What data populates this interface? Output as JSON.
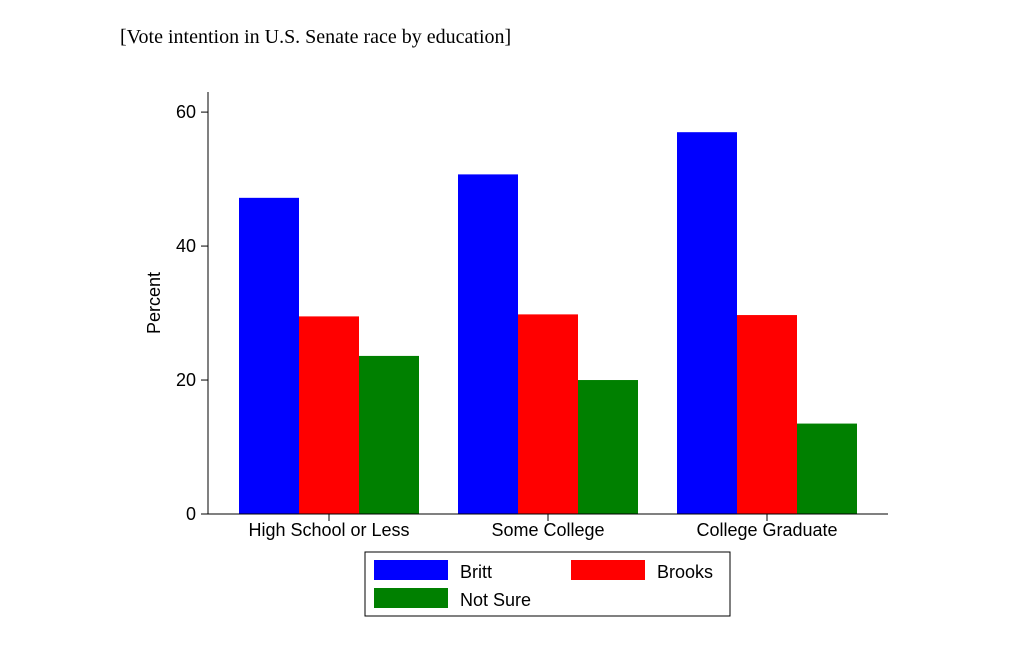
{
  "chart_data": {
    "type": "bar",
    "title": "[Vote intention in U.S. Senate race by education]",
    "xlabel": "",
    "ylabel": "Percent",
    "ylim": [
      0,
      63
    ],
    "yticks": [
      0,
      20,
      40,
      60
    ],
    "categories": [
      "High School or Less",
      "Some College",
      "College Graduate"
    ],
    "series": [
      {
        "name": "Britt",
        "color": "#0000ff",
        "values": [
          47.2,
          50.7,
          57.0
        ]
      },
      {
        "name": "Brooks",
        "color": "#ff0000",
        "values": [
          29.5,
          29.8,
          29.7
        ]
      },
      {
        "name": "Not Sure",
        "color": "#008000",
        "values": [
          23.6,
          20.0,
          13.5
        ]
      }
    ],
    "grid": false,
    "legend": "bottom"
  }
}
